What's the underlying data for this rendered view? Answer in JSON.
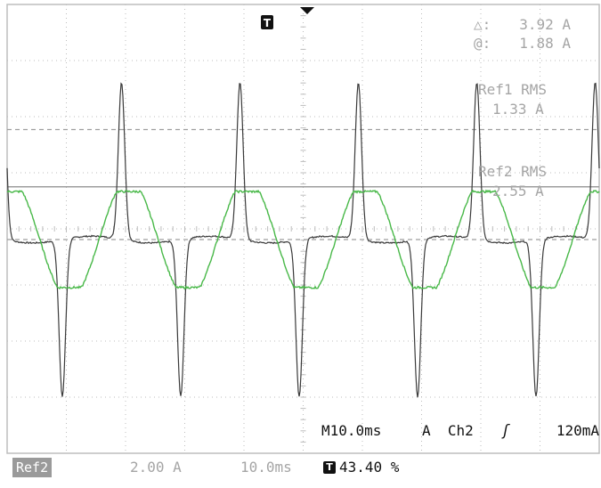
{
  "cursor_readout": {
    "delta_label": "△:",
    "delta_value": "3.92 A",
    "at_label": "@:",
    "at_value": "1.88 A"
  },
  "trigger_marker_glyph": "T",
  "measurements": {
    "ref1_label": "Ref1 RMS",
    "ref1_value": "1.33 A",
    "ref2_label": "Ref2 RMS",
    "ref2_value": "2.55 A"
  },
  "timebase_readout": {
    "timebase": "M10.0ms",
    "source_channel": "A  Ch2",
    "slope_glyph": "ʃ",
    "trigger_level": "120mA"
  },
  "status_bar": {
    "ref_badge": "Ref2",
    "volts_per_div": "2.00 A",
    "time_per_div": "10.0ms",
    "trigger_icon_glyph": "T",
    "trigger_position": "43.40 %"
  },
  "colors": {
    "background": "#ffffff",
    "grid": "#bdbdbd",
    "ref1_trace": "#3a3a3a",
    "ref2_trace": "#48b848",
    "cursor_line": "#9e9e9e",
    "readout_text": "#a5a5a5"
  },
  "chart_data": {
    "type": "line",
    "grid": true,
    "x_divisions": 10,
    "y_divisions": 8,
    "time_per_div_ms": 10,
    "amps_per_div": 2.0,
    "period_ms": 20.0,
    "cursor_levels_A": [
      1.88,
      -2.04,
      3.92
    ],
    "series": [
      {
        "name": "Ref1",
        "color": "#3a3a3a",
        "peak_A": 5.6,
        "rms_A": 1.33,
        "waveform": "pulsed"
      },
      {
        "name": "Ref2",
        "color": "#48b848",
        "peak_A": 1.8,
        "rms_A": 2.55,
        "waveform": "sinusoidal"
      }
    ]
  }
}
